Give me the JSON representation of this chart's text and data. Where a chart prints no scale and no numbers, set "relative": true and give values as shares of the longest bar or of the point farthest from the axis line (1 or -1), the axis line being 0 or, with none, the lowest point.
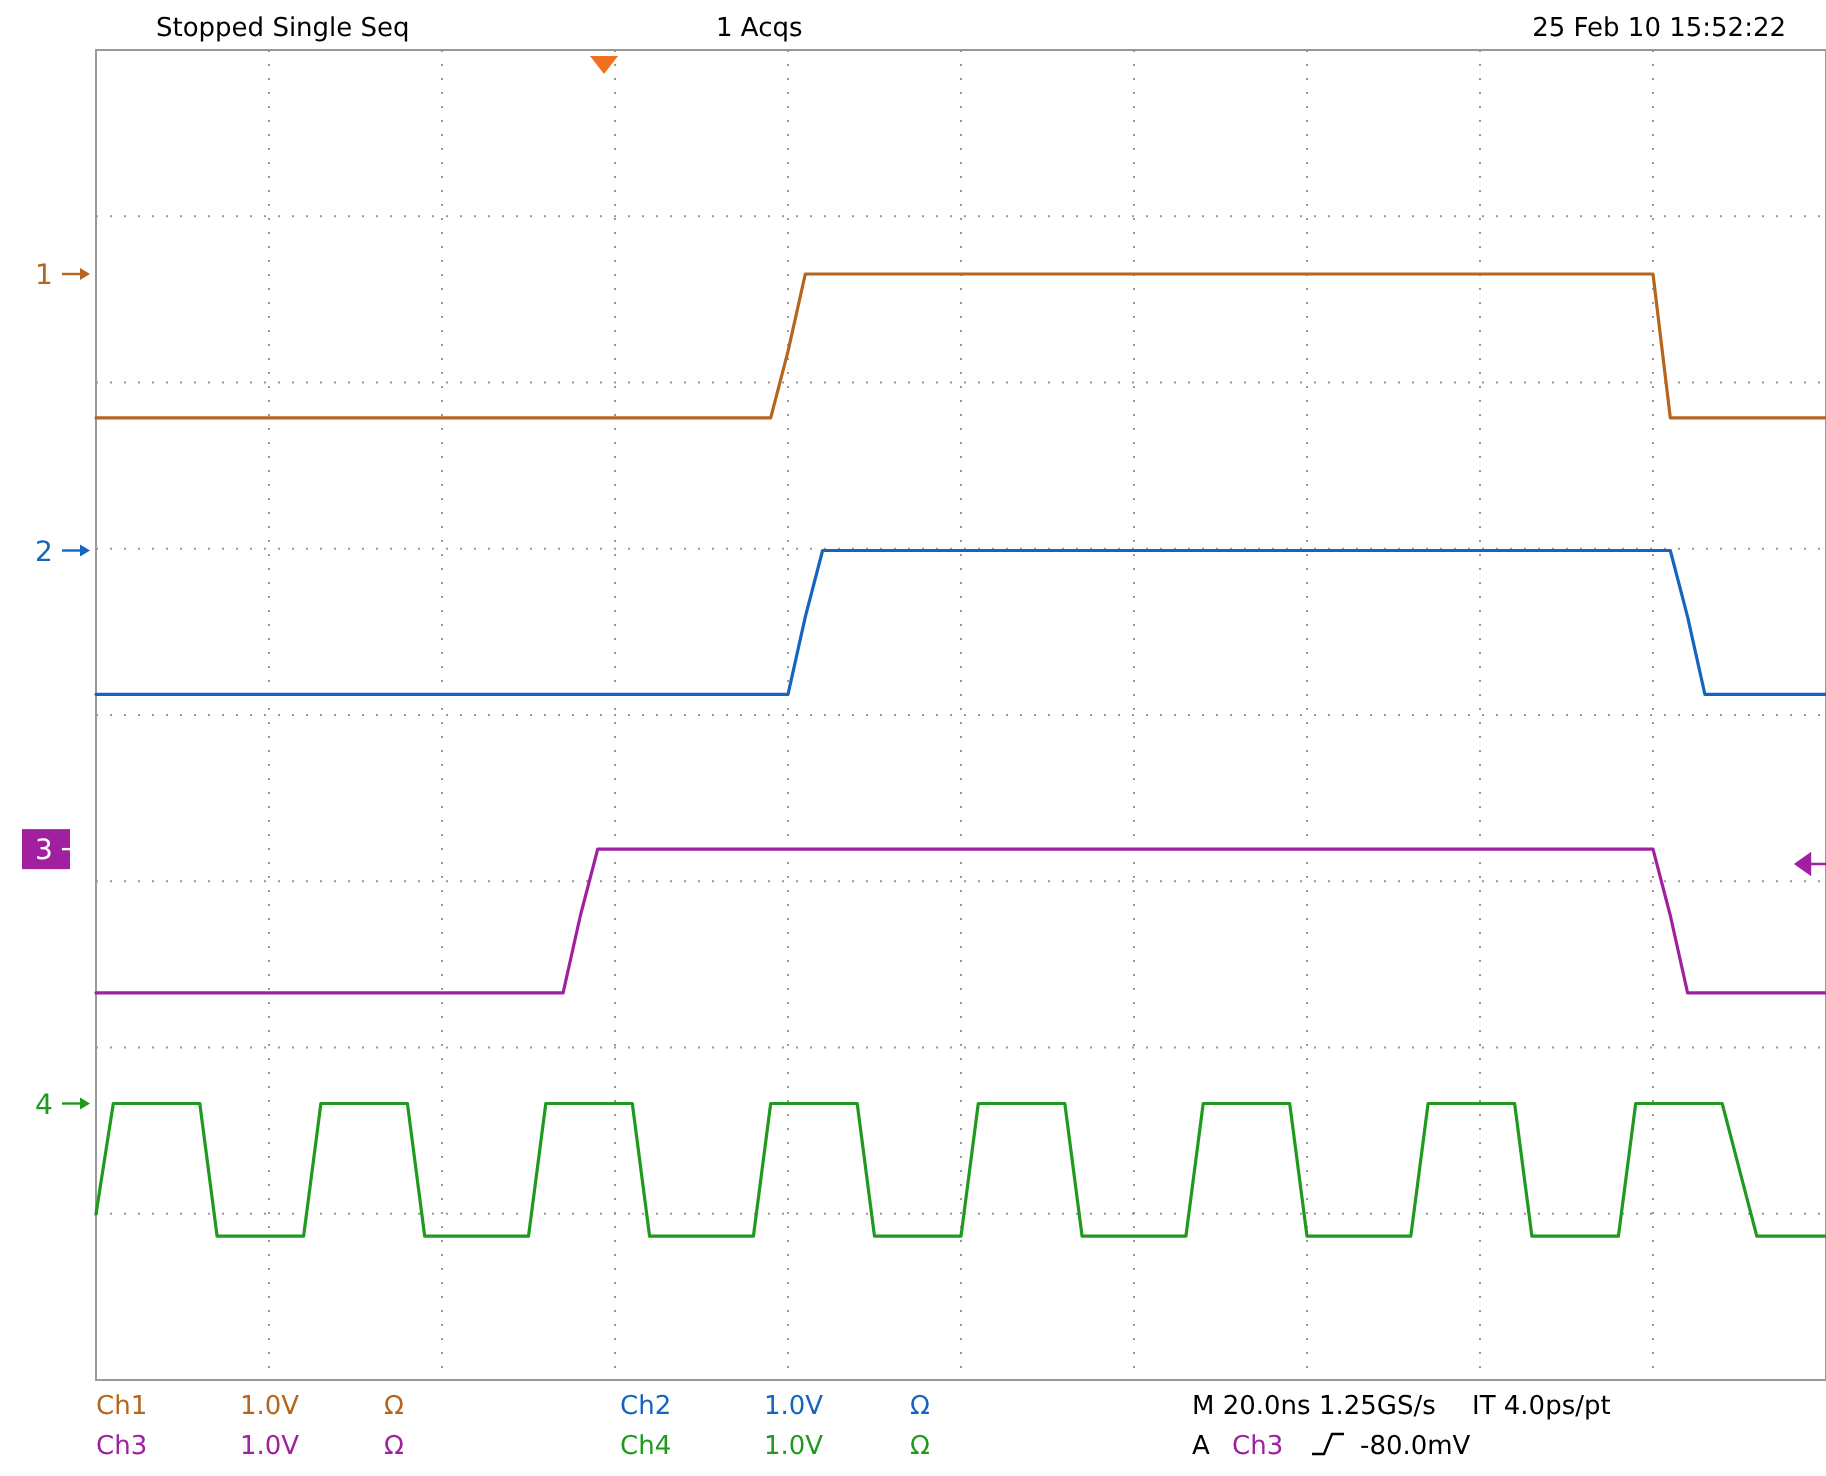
{
  "chart_data": {
    "type": "line",
    "relative": true,
    "grid": true,
    "legend": "left",
    "categories": [
      null,
      null,
      null,
      null,
      null,
      null,
      null,
      null,
      null,
      null,
      null,
      null,
      null,
      null,
      null,
      null,
      null,
      null,
      null,
      null,
      null,
      null,
      null,
      null,
      null,
      null,
      null,
      null,
      null,
      null,
      null,
      null,
      null,
      null,
      null,
      null,
      null,
      null,
      null,
      null,
      null,
      null,
      null,
      null,
      null,
      null,
      null,
      null,
      null,
      null,
      null,
      null,
      null,
      null,
      null,
      null,
      null,
      null,
      null,
      null,
      null,
      null,
      null,
      null,
      null,
      null,
      null,
      null,
      null,
      null,
      null,
      null,
      null,
      null,
      null,
      null,
      null,
      null,
      null,
      null,
      null,
      null,
      null,
      null,
      null,
      null,
      null,
      null,
      null,
      null,
      null,
      null,
      null,
      null,
      null,
      null,
      null,
      null,
      null,
      null,
      null
    ],
    "series": [
      {
        "name": "1",
        "color": "#b5651d",
        "values": [
          0.87,
          0.87,
          0.87,
          0.87,
          0.87,
          0.87,
          0.87,
          0.87,
          0.87,
          0.87,
          0.87,
          0.87,
          0.87,
          0.87,
          0.87,
          0.87,
          0.87,
          0.87,
          0.87,
          0.87,
          0.87,
          0.87,
          0.87,
          0.87,
          0.87,
          0.87,
          0.87,
          0.87,
          0.87,
          0.87,
          0.87,
          0.87,
          0.87,
          0.87,
          0.87,
          0.87,
          0.87,
          0.87,
          0.87,
          0.87,
          0.93,
          1,
          1,
          1,
          1,
          1,
          1,
          1,
          1,
          1,
          1,
          1,
          1,
          1,
          1,
          1,
          1,
          1,
          1,
          1,
          1,
          1,
          1,
          1,
          1,
          1,
          1,
          1,
          1,
          1,
          1,
          1,
          1,
          1,
          1,
          1,
          1,
          1,
          1,
          1,
          1,
          1,
          1,
          1,
          1,
          1,
          1,
          1,
          1,
          1,
          1,
          0.87,
          0.87,
          0.87,
          0.87,
          0.87,
          0.87,
          0.87,
          0.87,
          0.87,
          0.87
        ]
      },
      {
        "name": "2",
        "color": "#1565c0",
        "values": [
          0.62,
          0.62,
          0.62,
          0.62,
          0.62,
          0.62,
          0.62,
          0.62,
          0.62,
          0.62,
          0.62,
          0.62,
          0.62,
          0.62,
          0.62,
          0.62,
          0.62,
          0.62,
          0.62,
          0.62,
          0.62,
          0.62,
          0.62,
          0.62,
          0.62,
          0.62,
          0.62,
          0.62,
          0.62,
          0.62,
          0.62,
          0.62,
          0.62,
          0.62,
          0.62,
          0.62,
          0.62,
          0.62,
          0.62,
          0.62,
          0.62,
          0.69,
          0.75,
          0.75,
          0.75,
          0.75,
          0.75,
          0.75,
          0.75,
          0.75,
          0.75,
          0.75,
          0.75,
          0.75,
          0.75,
          0.75,
          0.75,
          0.75,
          0.75,
          0.75,
          0.75,
          0.75,
          0.75,
          0.75,
          0.75,
          0.75,
          0.75,
          0.75,
          0.75,
          0.75,
          0.75,
          0.75,
          0.75,
          0.75,
          0.75,
          0.75,
          0.75,
          0.75,
          0.75,
          0.75,
          0.75,
          0.75,
          0.75,
          0.75,
          0.75,
          0.75,
          0.75,
          0.75,
          0.75,
          0.75,
          0.75,
          0.75,
          0.69,
          0.62,
          0.62,
          0.62,
          0.62,
          0.62,
          0.62,
          0.62,
          0.62
        ]
      },
      {
        "name": "3",
        "color": "#a020a0",
        "values": [
          0.35,
          0.35,
          0.35,
          0.35,
          0.35,
          0.35,
          0.35,
          0.35,
          0.35,
          0.35,
          0.35,
          0.35,
          0.35,
          0.35,
          0.35,
          0.35,
          0.35,
          0.35,
          0.35,
          0.35,
          0.35,
          0.35,
          0.35,
          0.35,
          0.35,
          0.35,
          0.35,
          0.35,
          0.42,
          0.48,
          0.48,
          0.48,
          0.48,
          0.48,
          0.48,
          0.48,
          0.48,
          0.48,
          0.48,
          0.48,
          0.48,
          0.48,
          0.48,
          0.48,
          0.48,
          0.48,
          0.48,
          0.48,
          0.48,
          0.48,
          0.48,
          0.48,
          0.48,
          0.48,
          0.48,
          0.48,
          0.48,
          0.48,
          0.48,
          0.48,
          0.48,
          0.48,
          0.48,
          0.48,
          0.48,
          0.48,
          0.48,
          0.48,
          0.48,
          0.48,
          0.48,
          0.48,
          0.48,
          0.48,
          0.48,
          0.48,
          0.48,
          0.48,
          0.48,
          0.48,
          0.48,
          0.48,
          0.48,
          0.48,
          0.48,
          0.48,
          0.48,
          0.48,
          0.48,
          0.48,
          0.48,
          0.42,
          0.35,
          0.35,
          0.35,
          0.35,
          0.35,
          0.35,
          0.35,
          0.35,
          0.35
        ]
      },
      {
        "name": "4",
        "color": "#1f9a1f",
        "values": [
          0.15,
          0.25,
          0.25,
          0.25,
          0.25,
          0.25,
          0.25,
          0.13,
          0.13,
          0.13,
          0.13,
          0.13,
          0.13,
          0.25,
          0.25,
          0.25,
          0.25,
          0.25,
          0.25,
          0.13,
          0.13,
          0.13,
          0.13,
          0.13,
          0.13,
          0.13,
          0.25,
          0.25,
          0.25,
          0.25,
          0.25,
          0.25,
          0.13,
          0.13,
          0.13,
          0.13,
          0.13,
          0.13,
          0.13,
          0.25,
          0.25,
          0.25,
          0.25,
          0.25,
          0.25,
          0.13,
          0.13,
          0.13,
          0.13,
          0.13,
          0.13,
          0.25,
          0.25,
          0.25,
          0.25,
          0.25,
          0.25,
          0.13,
          0.13,
          0.13,
          0.13,
          0.13,
          0.13,
          0.13,
          0.25,
          0.25,
          0.25,
          0.25,
          0.25,
          0.25,
          0.13,
          0.13,
          0.13,
          0.13,
          0.13,
          0.13,
          0.13,
          0.25,
          0.25,
          0.25,
          0.25,
          0.25,
          0.25,
          0.13,
          0.13,
          0.13,
          0.13,
          0.13,
          0.13,
          0.25,
          0.25,
          0.25,
          0.25,
          0.25,
          0.25,
          0.19,
          0.13,
          0.13,
          0.13,
          0.13,
          0.13
        ]
      }
    ],
    "annotations": [
      "Stopped Single Seq",
      "1 Acqs",
      "25 Feb 10 15:52:22",
      "Ch1",
      "1.0V",
      "Ω",
      "Ch2",
      "1.0V",
      "Ω",
      "Ch3",
      "1.0V",
      "Ω",
      "Ch4",
      "1.0V",
      "Ω",
      "M 20.0ns 1.25GS/s",
      "IT 4.0ps/pt",
      "A",
      "Ch3",
      "-80.0mV"
    ]
  }
}
